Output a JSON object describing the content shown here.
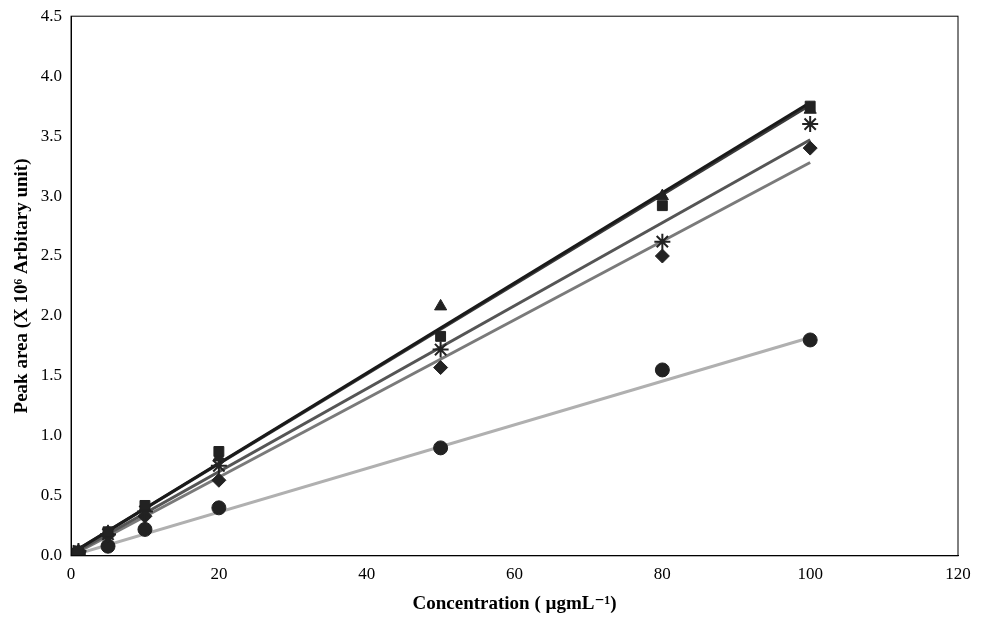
{
  "chart_data": {
    "type": "scatter",
    "x_label": "Concentration ( µgmL⁻¹)",
    "y_label": "Peak area (X 10⁶ Arbitary unit)",
    "xlim": [
      0,
      120
    ],
    "xticks": [
      0,
      20,
      40,
      60,
      80,
      100,
      120
    ],
    "ylim": [
      0,
      4.5
    ],
    "yticks": [
      {
        "value": 0,
        "label": "0.0"
      },
      {
        "value": 0.5,
        "label": "0.5"
      },
      {
        "value": 1,
        "label": "1.0"
      },
      {
        "value": 1.5,
        "label": "1.5"
      },
      {
        "value": 2,
        "label": "2.0"
      },
      {
        "value": 2.5,
        "label": "2.5"
      },
      {
        "value": 3,
        "label": "3.0"
      },
      {
        "value": 3.5,
        "label": "3.5"
      },
      {
        "value": 4,
        "label": "4.0"
      },
      {
        "value": 4.5,
        "label": "4.5"
      }
    ],
    "grid": false,
    "x": [
      0,
      0.5,
      1,
      5,
      10,
      20,
      50,
      80,
      100
    ],
    "series": [
      {
        "color": "#1a1a1a",
        "marker": "square",
        "values": [
          0,
          0.02,
          0.04,
          0.2,
          0.42,
          0.87,
          1.83,
          2.92,
          3.75
        ],
        "fit_x": [
          0,
          100
        ],
        "fit_values": [
          0.02,
          3.78
        ]
      },
      {
        "color": "#3a3a3a",
        "marker": "triangle",
        "values": [
          0,
          0.02,
          0.04,
          0.2,
          0.4,
          0.82,
          2.08,
          3.0,
          3.72
        ],
        "fit_x": [
          0,
          100
        ],
        "fit_values": [
          0.02,
          3.76
        ]
      },
      {
        "color": "#555555",
        "marker": "star",
        "values": [
          0,
          0.02,
          0.04,
          0.18,
          0.37,
          0.75,
          1.72,
          2.62,
          3.6
        ],
        "fit_x": [
          0,
          100
        ],
        "fit_values": [
          0.01,
          3.47
        ]
      },
      {
        "color": "#7a7a7a",
        "marker": "diamond",
        "values": [
          0,
          0.02,
          0.03,
          0.17,
          0.33,
          0.63,
          1.57,
          2.5,
          3.4
        ],
        "fit_x": [
          0,
          100
        ],
        "fit_values": [
          0,
          3.28
        ]
      },
      {
        "color": "#b0b0b0",
        "marker": "circle",
        "values": [
          0,
          0.01,
          0.02,
          0.08,
          0.22,
          0.4,
          0.9,
          1.55,
          1.8
        ],
        "fit_x": [
          0,
          100
        ],
        "fit_values": [
          0,
          1.82
        ]
      }
    ]
  }
}
